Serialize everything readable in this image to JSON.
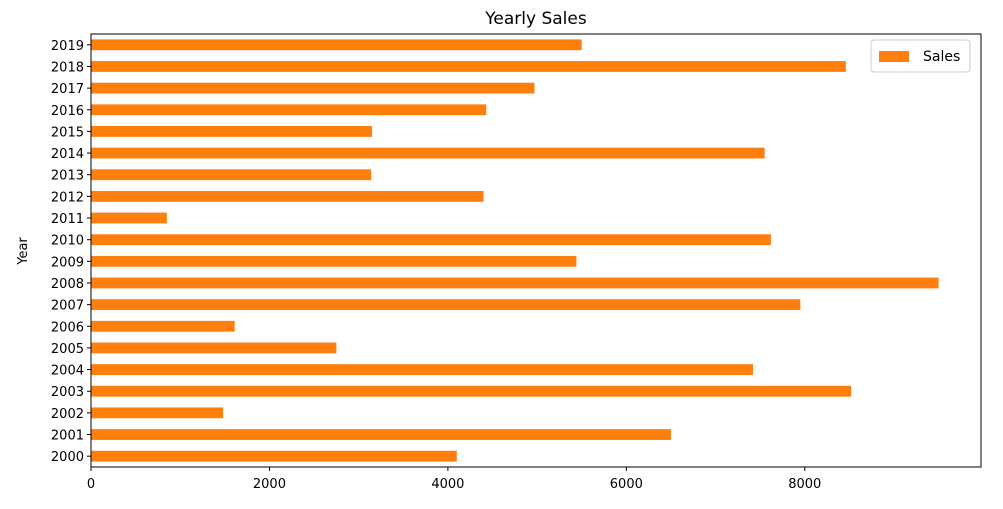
{
  "chart_data": {
    "type": "bar",
    "orientation": "horizontal",
    "title": "Yearly Sales",
    "xlabel": "",
    "ylabel": "Year",
    "categories": [
      "2000",
      "2001",
      "2002",
      "2003",
      "2004",
      "2005",
      "2006",
      "2007",
      "2008",
      "2009",
      "2010",
      "2011",
      "2012",
      "2013",
      "2014",
      "2015",
      "2016",
      "2017",
      "2018",
      "2019"
    ],
    "series": [
      {
        "name": "Sales",
        "color": "#ff7f0e",
        "values": [
          4100,
          6500,
          1480,
          8520,
          7420,
          2750,
          1610,
          7950,
          9500,
          5440,
          7620,
          850,
          4400,
          3140,
          7550,
          3150,
          4430,
          4970,
          8460,
          5500
        ]
      }
    ],
    "xlim": [
      0,
      9975
    ],
    "xticks": [
      0,
      2000,
      4000,
      6000,
      8000
    ],
    "grid": false,
    "legend": "top-right"
  }
}
